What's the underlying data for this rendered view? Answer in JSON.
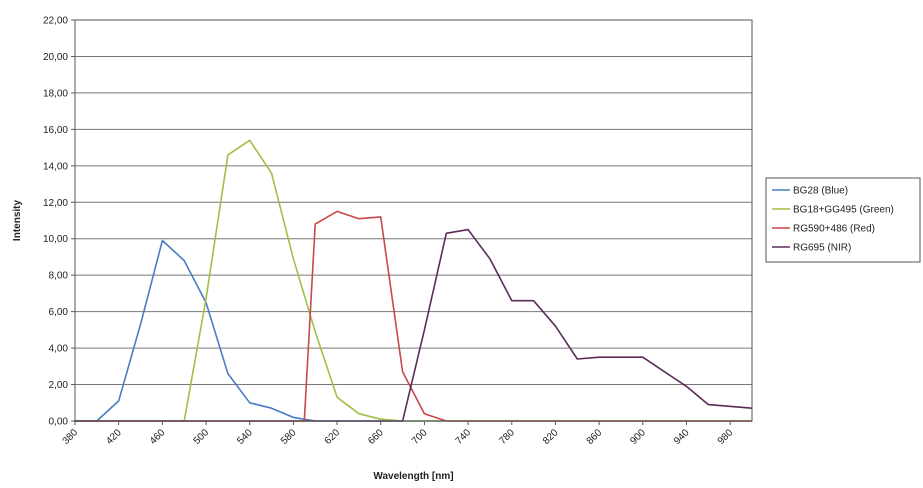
{
  "chart_data": {
    "type": "line",
    "title": "",
    "xlabel": "Wavelength [nm]",
    "ylabel": "Intensity",
    "xlim": [
      380,
      1000
    ],
    "ylim": [
      0,
      22
    ],
    "grid": true,
    "legend_position": "right",
    "y_ticks": [
      "0,00",
      "2,00",
      "4,00",
      "6,00",
      "8,00",
      "10,00",
      "12,00",
      "14,00",
      "16,00",
      "18,00",
      "20,00",
      "22,00"
    ],
    "x_ticks": [
      "380",
      "420",
      "460",
      "500",
      "540",
      "580",
      "620",
      "660",
      "700",
      "740",
      "780",
      "820",
      "860",
      "900",
      "940",
      "980"
    ],
    "series": [
      {
        "name": "BG28 (Blue)",
        "color": "#4a7cc4",
        "points": [
          [
            380,
            0
          ],
          [
            400,
            0
          ],
          [
            420,
            1.1
          ],
          [
            440,
            5.3
          ],
          [
            460,
            9.9
          ],
          [
            480,
            8.8
          ],
          [
            500,
            6.5
          ],
          [
            520,
            2.6
          ],
          [
            540,
            1.0
          ],
          [
            560,
            0.7
          ],
          [
            580,
            0.2
          ],
          [
            600,
            0
          ],
          [
            620,
            0
          ],
          [
            1000,
            0
          ]
        ]
      },
      {
        "name": "BG18+GG495 (Green)",
        "color": "#9fc044",
        "points": [
          [
            380,
            0
          ],
          [
            480,
            0
          ],
          [
            500,
            6.7
          ],
          [
            520,
            14.6
          ],
          [
            540,
            15.4
          ],
          [
            560,
            13.6
          ],
          [
            580,
            8.9
          ],
          [
            600,
            4.9
          ],
          [
            620,
            1.3
          ],
          [
            640,
            0.4
          ],
          [
            660,
            0.1
          ],
          [
            680,
            0
          ],
          [
            1000,
            0
          ]
        ]
      },
      {
        "name": "RG590+486 (Red)",
        "color": "#c8474a",
        "points": [
          [
            380,
            0
          ],
          [
            590,
            0
          ],
          [
            600,
            10.8
          ],
          [
            620,
            11.5
          ],
          [
            640,
            11.1
          ],
          [
            660,
            11.2
          ],
          [
            680,
            2.7
          ],
          [
            700,
            0.4
          ],
          [
            720,
            0
          ],
          [
            1000,
            0
          ]
        ]
      },
      {
        "name": "RG695 (NIR)",
        "color": "#5a2d58",
        "points": [
          [
            380,
            0
          ],
          [
            680,
            0
          ],
          [
            700,
            5.0
          ],
          [
            720,
            10.3
          ],
          [
            740,
            10.5
          ],
          [
            760,
            8.9
          ],
          [
            780,
            6.6
          ],
          [
            800,
            6.6
          ],
          [
            820,
            5.2
          ],
          [
            840,
            3.4
          ],
          [
            860,
            3.5
          ],
          [
            880,
            3.5
          ],
          [
            900,
            3.5
          ],
          [
            920,
            2.7
          ],
          [
            940,
            1.9
          ],
          [
            960,
            0.9
          ],
          [
            1000,
            0.7
          ]
        ]
      }
    ]
  }
}
